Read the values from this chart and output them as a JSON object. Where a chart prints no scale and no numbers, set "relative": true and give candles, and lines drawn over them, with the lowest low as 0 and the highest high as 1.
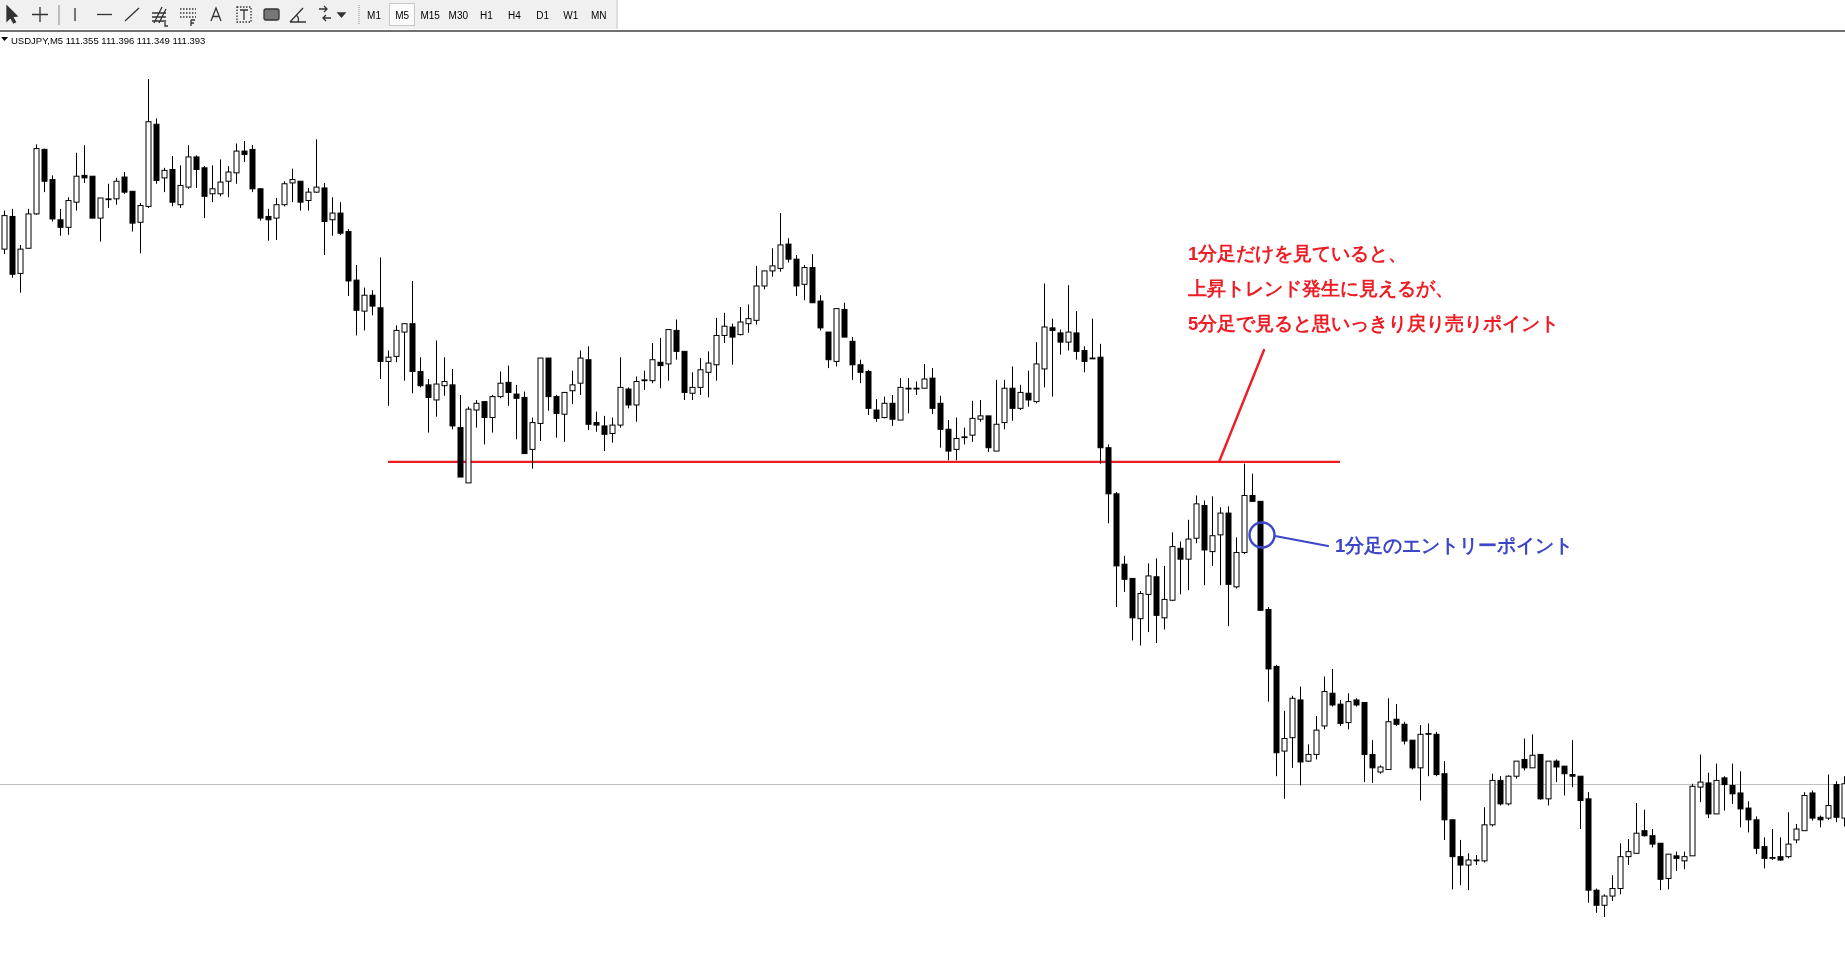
{
  "chart_data": {
    "type": "candlestick",
    "relative": true,
    "subtitle": "USDJPY,M5 111.355 111.396 111.349 111.393",
    "categories": [
      null,
      null,
      null,
      null,
      null,
      null,
      null,
      null,
      null,
      null,
      null,
      null,
      null,
      null,
      null,
      null,
      null,
      null,
      null,
      null,
      null,
      null,
      null,
      null,
      null,
      null,
      null,
      null,
      null,
      null,
      null,
      null,
      null,
      null,
      null,
      null,
      null,
      null,
      null,
      null,
      null,
      null,
      null,
      null,
      null,
      null,
      null,
      null,
      null,
      null,
      null,
      null,
      null,
      null,
      null,
      null,
      null,
      null,
      null,
      null,
      null,
      null,
      null,
      null,
      null,
      null,
      null,
      null,
      null,
      null,
      null,
      null,
      null,
      null,
      null,
      null,
      null,
      null,
      null,
      null,
      null,
      null,
      null,
      null,
      null,
      null,
      null,
      null,
      null,
      null,
      null,
      null,
      null,
      null,
      null,
      null,
      null,
      null,
      null,
      null,
      null,
      null,
      null,
      null,
      null,
      null,
      null,
      null,
      null,
      null,
      null,
      null,
      null,
      null,
      null,
      null,
      null,
      null,
      null,
      null,
      null,
      null,
      null,
      null,
      null,
      null,
      null,
      null,
      null,
      null,
      null,
      null,
      null,
      null,
      null,
      null,
      null,
      null,
      null,
      null,
      null,
      null,
      null,
      null,
      null,
      null,
      null,
      null,
      null,
      null,
      null,
      null,
      null,
      null,
      null,
      null,
      null,
      null,
      null,
      null,
      null,
      null,
      null,
      null,
      null,
      null,
      null,
      null,
      null,
      null,
      null,
      null,
      null,
      null,
      null,
      null,
      null,
      null,
      null,
      null,
      null,
      null,
      null,
      null,
      null,
      null,
      null,
      null,
      null,
      null,
      null,
      null,
      null,
      null,
      null,
      null,
      null,
      null,
      null,
      null,
      null,
      null,
      null,
      null,
      null,
      null,
      null,
      null,
      null,
      null,
      null,
      null,
      null,
      null,
      null,
      null,
      null,
      null,
      null,
      null,
      null,
      null,
      null,
      null,
      null,
      null,
      null,
      null,
      null,
      null,
      null
    ],
    "ohlc": [
      [
        0.797,
        0.843,
        0.791,
        0.837
      ],
      [
        0.836,
        0.845,
        0.763,
        0.767
      ],
      [
        0.768,
        0.802,
        0.745,
        0.797
      ],
      [
        0.798,
        0.845,
        0.798,
        0.839
      ],
      [
        0.839,
        0.922,
        0.838,
        0.917
      ],
      [
        0.916,
        0.917,
        0.865,
        0.878
      ],
      [
        0.88,
        0.885,
        0.83,
        0.833
      ],
      [
        0.832,
        0.845,
        0.813,
        0.823
      ],
      [
        0.823,
        0.859,
        0.814,
        0.855
      ],
      [
        0.853,
        0.912,
        0.843,
        0.884
      ],
      [
        0.885,
        0.921,
        0.876,
        0.882
      ],
      [
        0.884,
        0.884,
        0.834,
        0.834
      ],
      [
        0.834,
        0.858,
        0.806,
        0.858
      ],
      [
        0.856,
        0.875,
        0.846,
        0.857
      ],
      [
        0.857,
        0.882,
        0.85,
        0.878
      ],
      [
        0.883,
        0.889,
        0.863,
        0.865
      ],
      [
        0.866,
        0.866,
        0.818,
        0.828
      ],
      [
        0.829,
        0.852,
        0.792,
        0.849
      ],
      [
        0.848,
        1.0,
        0.846,
        0.949
      ],
      [
        0.946,
        0.953,
        0.875,
        0.879
      ],
      [
        0.882,
        0.894,
        0.865,
        0.891
      ],
      [
        0.892,
        0.908,
        0.848,
        0.853
      ],
      [
        0.85,
        0.897,
        0.846,
        0.873
      ],
      [
        0.871,
        0.921,
        0.869,
        0.907
      ],
      [
        0.907,
        0.909,
        0.87,
        0.892
      ],
      [
        0.894,
        0.896,
        0.834,
        0.86
      ],
      [
        0.863,
        0.897,
        0.853,
        0.869
      ],
      [
        0.863,
        0.904,
        0.86,
        0.877
      ],
      [
        0.878,
        0.896,
        0.859,
        0.889
      ],
      [
        0.888,
        0.923,
        0.875,
        0.914
      ],
      [
        0.914,
        0.926,
        0.901,
        0.91
      ],
      [
        0.916,
        0.921,
        0.865,
        0.869
      ],
      [
        0.869,
        0.869,
        0.831,
        0.834
      ],
      [
        0.836,
        0.845,
        0.807,
        0.832
      ],
      [
        0.834,
        0.858,
        0.808,
        0.85
      ],
      [
        0.85,
        0.878,
        0.848,
        0.875
      ],
      [
        0.876,
        0.893,
        0.853,
        0.88
      ],
      [
        0.878,
        0.878,
        0.843,
        0.853
      ],
      [
        0.855,
        0.87,
        0.843,
        0.865
      ],
      [
        0.865,
        0.928,
        0.864,
        0.871
      ],
      [
        0.87,
        0.876,
        0.79,
        0.83
      ],
      [
        0.832,
        0.859,
        0.813,
        0.84
      ],
      [
        0.84,
        0.853,
        0.814,
        0.816
      ],
      [
        0.818,
        0.821,
        0.741,
        0.759
      ],
      [
        0.76,
        0.778,
        0.694,
        0.724
      ],
      [
        0.723,
        0.751,
        0.7,
        0.742
      ],
      [
        0.742,
        0.748,
        0.718,
        0.729
      ],
      [
        0.727,
        0.787,
        0.642,
        0.663
      ],
      [
        0.663,
        0.676,
        0.61,
        0.668
      ],
      [
        0.669,
        0.706,
        0.662,
        0.7
      ],
      [
        0.698,
        0.708,
        0.64,
        0.708
      ],
      [
        0.708,
        0.759,
        0.625,
        0.651
      ],
      [
        0.651,
        0.668,
        0.632,
        0.634
      ],
      [
        0.635,
        0.642,
        0.578,
        0.62
      ],
      [
        0.617,
        0.688,
        0.597,
        0.636
      ],
      [
        0.634,
        0.668,
        0.622,
        0.639
      ],
      [
        0.635,
        0.654,
        0.582,
        0.586
      ],
      [
        0.584,
        0.623,
        0.525,
        0.525
      ],
      [
        0.518,
        0.609,
        0.518,
        0.606
      ],
      [
        0.605,
        0.617,
        0.584,
        0.613
      ],
      [
        0.615,
        0.615,
        0.564,
        0.596
      ],
      [
        0.596,
        0.623,
        0.578,
        0.621
      ],
      [
        0.621,
        0.651,
        0.619,
        0.637
      ],
      [
        0.638,
        0.658,
        0.61,
        0.626
      ],
      [
        0.624,
        0.635,
        0.57,
        0.619
      ],
      [
        0.62,
        0.627,
        0.553,
        0.553
      ],
      [
        0.558,
        0.596,
        0.535,
        0.59
      ],
      [
        0.589,
        0.667,
        0.568,
        0.667
      ],
      [
        0.667,
        0.667,
        0.604,
        0.621
      ],
      [
        0.621,
        0.623,
        0.572,
        0.601
      ],
      [
        0.6,
        0.626,
        0.567,
        0.626
      ],
      [
        0.628,
        0.652,
        0.612,
        0.635
      ],
      [
        0.637,
        0.676,
        0.623,
        0.667
      ],
      [
        0.665,
        0.681,
        0.581,
        0.588
      ],
      [
        0.59,
        0.603,
        0.579,
        0.587
      ],
      [
        0.586,
        0.598,
        0.556,
        0.576
      ],
      [
        0.577,
        0.596,
        0.566,
        0.587
      ],
      [
        0.587,
        0.668,
        0.584,
        0.632
      ],
      [
        0.63,
        0.632,
        0.607,
        0.611
      ],
      [
        0.611,
        0.645,
        0.591,
        0.639
      ],
      [
        0.64,
        0.652,
        0.629,
        0.641
      ],
      [
        0.64,
        0.685,
        0.637,
        0.665
      ],
      [
        0.662,
        0.691,
        0.631,
        0.658
      ],
      [
        0.66,
        0.701,
        0.64,
        0.701
      ],
      [
        0.7,
        0.713,
        0.665,
        0.675
      ],
      [
        0.675,
        0.675,
        0.617,
        0.626
      ],
      [
        0.625,
        0.65,
        0.617,
        0.632
      ],
      [
        0.632,
        0.667,
        0.623,
        0.653
      ],
      [
        0.65,
        0.675,
        0.62,
        0.661
      ],
      [
        0.659,
        0.715,
        0.64,
        0.694
      ],
      [
        0.694,
        0.721,
        0.685,
        0.705
      ],
      [
        0.704,
        0.708,
        0.659,
        0.692
      ],
      [
        0.695,
        0.728,
        0.694,
        0.71
      ],
      [
        0.708,
        0.731,
        0.697,
        0.714
      ],
      [
        0.712,
        0.777,
        0.707,
        0.753
      ],
      [
        0.753,
        0.771,
        0.749,
        0.771
      ],
      [
        0.771,
        0.798,
        0.764,
        0.777
      ],
      [
        0.774,
        0.84,
        0.77,
        0.802
      ],
      [
        0.803,
        0.81,
        0.781,
        0.785
      ],
      [
        0.785,
        0.79,
        0.741,
        0.753
      ],
      [
        0.755,
        0.778,
        0.736,
        0.775
      ],
      [
        0.775,
        0.791,
        0.733,
        0.733
      ],
      [
        0.735,
        0.742,
        0.7,
        0.703
      ],
      [
        0.698,
        0.698,
        0.655,
        0.665
      ],
      [
        0.663,
        0.726,
        0.657,
        0.726
      ],
      [
        0.725,
        0.733,
        0.692,
        0.692
      ],
      [
        0.687,
        0.692,
        0.641,
        0.659
      ],
      [
        0.659,
        0.665,
        0.637,
        0.65
      ],
      [
        0.651,
        0.653,
        0.599,
        0.607
      ],
      [
        0.605,
        0.618,
        0.591,
        0.595
      ],
      [
        0.596,
        0.621,
        0.595,
        0.613
      ],
      [
        0.613,
        0.623,
        0.586,
        0.594
      ],
      [
        0.593,
        0.643,
        0.593,
        0.632
      ],
      [
        0.631,
        0.643,
        0.601,
        0.631
      ],
      [
        0.631,
        0.639,
        0.623,
        0.631
      ],
      [
        0.631,
        0.66,
        0.631,
        0.642
      ],
      [
        0.643,
        0.655,
        0.6,
        0.607
      ],
      [
        0.613,
        0.622,
        0.56,
        0.582
      ],
      [
        0.582,
        0.593,
        0.545,
        0.556
      ],
      [
        0.558,
        0.596,
        0.545,
        0.571
      ],
      [
        0.573,
        0.584,
        0.564,
        0.573
      ],
      [
        0.575,
        0.616,
        0.567,
        0.595
      ],
      [
        0.594,
        0.617,
        0.591,
        0.598
      ],
      [
        0.598,
        0.598,
        0.555,
        0.56
      ],
      [
        0.556,
        0.641,
        0.556,
        0.588
      ],
      [
        0.59,
        0.641,
        0.582,
        0.631
      ],
      [
        0.631,
        0.657,
        0.592,
        0.607
      ],
      [
        0.607,
        0.635,
        0.605,
        0.626
      ],
      [
        0.625,
        0.652,
        0.609,
        0.617
      ],
      [
        0.615,
        0.686,
        0.613,
        0.66
      ],
      [
        0.654,
        0.756,
        0.632,
        0.704
      ],
      [
        0.703,
        0.714,
        0.621,
        0.7
      ],
      [
        0.697,
        0.701,
        0.671,
        0.686
      ],
      [
        0.686,
        0.754,
        0.676,
        0.698
      ],
      [
        0.697,
        0.723,
        0.665,
        0.675
      ],
      [
        0.676,
        0.681,
        0.65,
        0.663
      ],
      [
        0.667,
        0.714,
        0.667,
        0.667
      ],
      [
        0.668,
        0.684,
        0.541,
        0.56
      ],
      [
        0.56,
        0.564,
        0.47,
        0.505
      ],
      [
        0.505,
        0.507,
        0.37,
        0.419
      ],
      [
        0.421,
        0.431,
        0.388,
        0.403
      ],
      [
        0.404,
        0.404,
        0.33,
        0.357
      ],
      [
        0.356,
        0.389,
        0.324,
        0.386
      ],
      [
        0.385,
        0.422,
        0.34,
        0.407
      ],
      [
        0.406,
        0.428,
        0.327,
        0.36
      ],
      [
        0.357,
        0.419,
        0.343,
        0.379
      ],
      [
        0.378,
        0.459,
        0.377,
        0.442
      ],
      [
        0.44,
        0.448,
        0.385,
        0.427
      ],
      [
        0.427,
        0.474,
        0.39,
        0.451
      ],
      [
        0.452,
        0.503,
        0.446,
        0.493
      ],
      [
        0.491,
        0.497,
        0.396,
        0.438
      ],
      [
        0.436,
        0.502,
        0.419,
        0.455
      ],
      [
        0.456,
        0.489,
        0.396,
        0.482
      ],
      [
        0.482,
        0.49,
        0.347,
        0.397
      ],
      [
        0.394,
        0.453,
        0.392,
        0.435
      ],
      [
        0.435,
        0.541,
        0.433,
        0.503
      ],
      [
        0.503,
        0.529,
        0.496,
        0.496
      ],
      [
        0.496,
        0.496,
        0.366,
        0.366
      ],
      [
        0.367,
        0.37,
        0.257,
        0.296
      ],
      [
        0.299,
        0.301,
        0.168,
        0.196
      ],
      [
        0.198,
        0.246,
        0.141,
        0.213
      ],
      [
        0.214,
        0.264,
        0.178,
        0.261
      ],
      [
        0.259,
        0.275,
        0.157,
        0.185
      ],
      [
        0.186,
        0.206,
        0.185,
        0.194
      ],
      [
        0.194,
        0.24,
        0.188,
        0.223
      ],
      [
        0.228,
        0.287,
        0.224,
        0.269
      ],
      [
        0.267,
        0.296,
        0.251,
        0.253
      ],
      [
        0.254,
        0.259,
        0.228,
        0.231
      ],
      [
        0.232,
        0.267,
        0.224,
        0.257
      ],
      [
        0.259,
        0.261,
        0.251,
        0.253
      ],
      [
        0.256,
        0.256,
        0.161,
        0.194
      ],
      [
        0.194,
        0.211,
        0.16,
        0.178
      ],
      [
        0.173,
        0.181,
        0.171,
        0.179
      ],
      [
        0.176,
        0.261,
        0.176,
        0.233
      ],
      [
        0.236,
        0.254,
        0.228,
        0.23
      ],
      [
        0.23,
        0.233,
        0.206,
        0.21
      ],
      [
        0.211,
        0.211,
        0.176,
        0.178
      ],
      [
        0.178,
        0.229,
        0.139,
        0.218
      ],
      [
        0.219,
        0.231,
        0.168,
        0.219
      ],
      [
        0.218,
        0.221,
        0.168,
        0.17
      ],
      [
        0.171,
        0.186,
        0.092,
        0.116
      ],
      [
        0.116,
        0.116,
        0.033,
        0.072
      ],
      [
        0.072,
        0.092,
        0.038,
        0.062
      ],
      [
        0.062,
        0.076,
        0.032,
        0.068
      ],
      [
        0.068,
        0.074,
        0.062,
        0.068
      ],
      [
        0.067,
        0.131,
        0.065,
        0.11
      ],
      [
        0.11,
        0.171,
        0.108,
        0.163
      ],
      [
        0.163,
        0.168,
        0.133,
        0.135
      ],
      [
        0.135,
        0.169,
        0.133,
        0.168
      ],
      [
        0.168,
        0.186,
        0.165,
        0.186
      ],
      [
        0.188,
        0.213,
        0.175,
        0.178
      ],
      [
        0.178,
        0.218,
        0.178,
        0.193
      ],
      [
        0.194,
        0.194,
        0.14,
        0.141
      ],
      [
        0.141,
        0.186,
        0.133,
        0.186
      ],
      [
        0.186,
        0.188,
        0.161,
        0.179
      ],
      [
        0.18,
        0.18,
        0.145,
        0.171
      ],
      [
        0.17,
        0.211,
        0.155,
        0.168
      ],
      [
        0.168,
        0.168,
        0.105,
        0.139
      ],
      [
        0.141,
        0.149,
        0.017,
        0.032
      ],
      [
        0.032,
        0.034,
        0.005,
        0.014
      ],
      [
        0.014,
        0.027,
        0.0,
        0.025
      ],
      [
        0.025,
        0.05,
        0.019,
        0.034
      ],
      [
        0.034,
        0.088,
        0.027,
        0.072
      ],
      [
        0.072,
        0.093,
        0.062,
        0.078
      ],
      [
        0.076,
        0.136,
        0.076,
        0.1
      ],
      [
        0.103,
        0.128,
        0.096,
        0.097
      ],
      [
        0.097,
        0.105,
        0.083,
        0.087
      ],
      [
        0.088,
        0.088,
        0.032,
        0.045
      ],
      [
        0.046,
        0.075,
        0.033,
        0.075
      ],
      [
        0.073,
        0.078,
        0.055,
        0.07
      ],
      [
        0.067,
        0.078,
        0.057,
        0.072
      ],
      [
        0.073,
        0.159,
        0.073,
        0.156
      ],
      [
        0.155,
        0.194,
        0.137,
        0.161
      ],
      [
        0.16,
        0.172,
        0.118,
        0.123
      ],
      [
        0.123,
        0.183,
        0.123,
        0.163
      ],
      [
        0.166,
        0.168,
        0.127,
        0.158
      ],
      [
        0.157,
        0.183,
        0.135,
        0.147
      ],
      [
        0.148,
        0.174,
        0.107,
        0.129
      ],
      [
        0.13,
        0.138,
        0.101,
        0.116
      ],
      [
        0.116,
        0.12,
        0.075,
        0.082
      ],
      [
        0.084,
        0.095,
        0.058,
        0.07
      ],
      [
        0.071,
        0.105,
        0.068,
        0.071
      ],
      [
        0.072,
        0.095,
        0.067,
        0.068
      ],
      [
        0.072,
        0.125,
        0.07,
        0.087
      ],
      [
        0.092,
        0.111,
        0.088,
        0.105
      ],
      [
        0.103,
        0.149,
        0.103,
        0.145
      ],
      [
        0.148,
        0.151,
        0.115,
        0.118
      ],
      [
        0.119,
        0.121,
        0.107,
        0.116
      ],
      [
        0.118,
        0.17,
        0.116,
        0.133
      ],
      [
        0.158,
        0.162,
        0.113,
        0.119
      ],
      [
        0.118,
        0.168,
        0.108,
        0.159
      ]
    ],
    "series": [
      {
        "type": "line",
        "color": "#ee1c25",
        "values": [
          null,
          null,
          null,
          null,
          null,
          null,
          null,
          null,
          null,
          null,
          null,
          null,
          null,
          null,
          null,
          null,
          null,
          null,
          null,
          null,
          null,
          null,
          null,
          null,
          null,
          null,
          null,
          null,
          null,
          null,
          null,
          null,
          null,
          null,
          null,
          null,
          null,
          null,
          null,
          null,
          null,
          null,
          null,
          null,
          null,
          null,
          null,
          null,
          0.543,
          0.543,
          0.543,
          0.543,
          0.543,
          0.543,
          0.543,
          0.543,
          0.543,
          0.543,
          0.543,
          0.543,
          0.543,
          0.543,
          0.543,
          0.543,
          0.543,
          0.543,
          0.543,
          0.543,
          0.543,
          0.543,
          0.543,
          0.543,
          0.543,
          0.543,
          0.543,
          0.543,
          0.543,
          0.543,
          0.543,
          0.543,
          0.543,
          0.543,
          0.543,
          0.543,
          0.543,
          0.543,
          0.543,
          0.543,
          0.543,
          0.543,
          0.543,
          0.543,
          0.543,
          0.543,
          0.543,
          0.543,
          0.543,
          0.543,
          0.543,
          0.543,
          0.543,
          0.543,
          0.543,
          0.543,
          0.543,
          0.543,
          0.543,
          0.543,
          0.543,
          0.543,
          0.543,
          0.543,
          0.543,
          0.543,
          0.543,
          0.543,
          0.543,
          0.543,
          0.543,
          0.543,
          0.543,
          0.543,
          0.543,
          0.543,
          0.543,
          0.543,
          0.543,
          0.543,
          0.543,
          0.543,
          0.543,
          0.543,
          0.543,
          0.543,
          0.543,
          0.543,
          0.543,
          0.543,
          0.543,
          0.543,
          0.543,
          0.543,
          0.543,
          0.543,
          0.543,
          0.543,
          0.543,
          0.543,
          0.543,
          0.543,
          0.543,
          0.543,
          0.543,
          0.543,
          0.543,
          0.543,
          0.543,
          0.543,
          0.543,
          0.543,
          0.543,
          0.543,
          0.543,
          0.543,
          0.543,
          0.543,
          0.543,
          0.543,
          null,
          null,
          null,
          null,
          null,
          null,
          null,
          null,
          null,
          null,
          null,
          null,
          null,
          null,
          null,
          null,
          null,
          null,
          null,
          null,
          null,
          null,
          null,
          null,
          null,
          null,
          null,
          null,
          null,
          null,
          null,
          null,
          null,
          null,
          null,
          null,
          null,
          null,
          null,
          null,
          null,
          null,
          null,
          null,
          null,
          null,
          null,
          null,
          null,
          null,
          null,
          null,
          null,
          null,
          null,
          null,
          null,
          null,
          null,
          null,
          null,
          null,
          null
        ]
      }
    ],
    "ref_lines": [
      {
        "axis": "y",
        "value": 0.159,
        "color": "#c0c0c0"
      }
    ],
    "annotations": [
      "1分足だけを見ていると、",
      "上昇トレンド発生に見えるが、",
      "5分足で見ると思いっきり戻り売りポイント",
      "1分足のエントリーポイント",
      "M1",
      "M5",
      "M15",
      "M30",
      "H1",
      "H4",
      "D1",
      "W1",
      "MN"
    ]
  }
}
